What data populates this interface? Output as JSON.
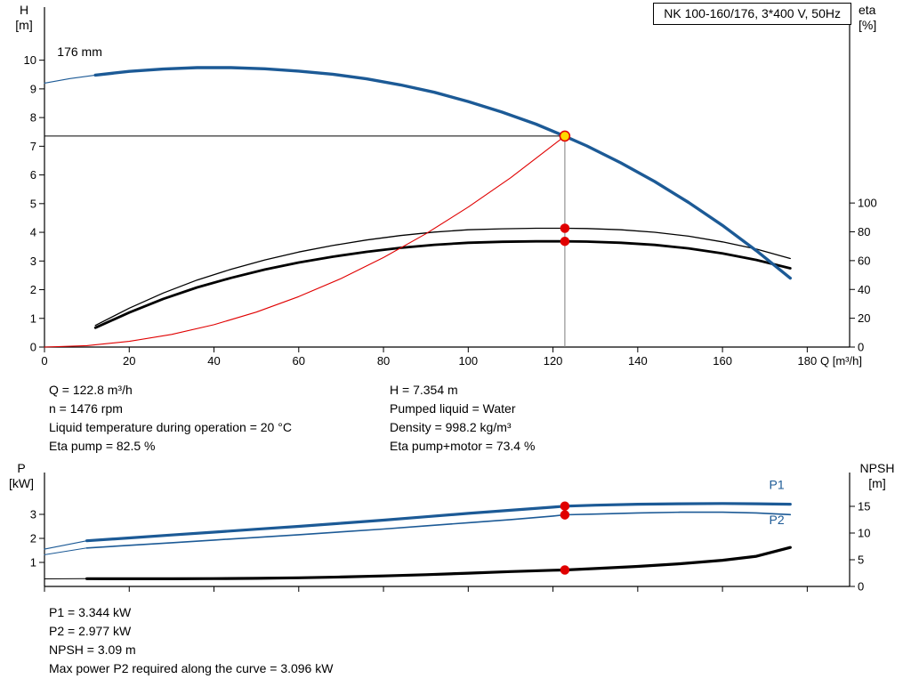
{
  "title_box": {
    "text": "NK 100-160/176, 3*400 V, 50Hz"
  },
  "axes_labels": {
    "h_symbol": "H",
    "h_unit": "[m]",
    "eta_symbol": "eta",
    "eta_unit": "[%]",
    "q_label": "Q [m³/h]",
    "p_symbol": "P",
    "p_unit": "[kW]",
    "npsh_symbol": "NPSH",
    "npsh_unit": "[m]"
  },
  "info_block": {
    "left": [
      "Q = 122.8 m³/h",
      "n = 1476 rpm",
      "Liquid temperature during operation = 20 °C",
      "Eta pump = 82.5 %"
    ],
    "right": [
      "H = 7.354 m",
      "Pumped liquid = Water",
      "Density = 998.2 kg/m³",
      "Eta pump+motor = 73.4 %"
    ]
  },
  "results_block": {
    "lines": [
      "P1 = 3.344 kW",
      "P2 = 2.977 kW",
      "NPSH = 3.09 m",
      "Max power P2 required along the curve = 3.096 kW"
    ]
  },
  "colors": {
    "curve_blue": "#1c5a96",
    "marker_red": "#e00000",
    "duty_yellow": "#ffd800",
    "ref_gray": "#7d7d7d",
    "black": "#000000"
  },
  "chart_data": [
    {
      "id": "qh-chart",
      "type": "line",
      "title": "NK 100-160/176, 3*400 V, 50Hz",
      "xlabel": "Q [m³/h]",
      "ylabel_left": "H [m]",
      "ylabel_right": "eta [%]",
      "grid": false,
      "show_x_tick_labels": true,
      "x_axis": {
        "min": 0,
        "max": 190,
        "ticks": [
          0,
          20,
          40,
          60,
          80,
          100,
          120,
          140,
          160,
          180
        ]
      },
      "y_axis_left": {
        "min": 0,
        "max": 11.85,
        "ticks": [
          0,
          1,
          2,
          3,
          4,
          5,
          6,
          7,
          8,
          9,
          10
        ]
      },
      "y_axis_right": {
        "min": 0,
        "max": 236,
        "ticks": [
          0,
          20,
          40,
          60,
          80,
          100
        ]
      },
      "ref_lines": [
        {
          "name": "duty-head-line",
          "orient": "h",
          "axis": "left",
          "y": 7.354,
          "x1": 0,
          "x2": 122.8,
          "color": "#000000",
          "width": 1
        },
        {
          "name": "duty-flow-line",
          "orient": "v",
          "axis": "left",
          "x": 122.8,
          "y1": 0,
          "y2": 7.354,
          "color": "#7d7d7d",
          "width": 1
        }
      ],
      "series": [
        {
          "name": "head-curve-extension",
          "axis": "left",
          "color": "#1c5a96",
          "width": 1.1,
          "x": [
            0,
            6,
            12
          ],
          "y": [
            9.2,
            9.36,
            9.48
          ]
        },
        {
          "name": "eta-pump-curve",
          "axis": "right",
          "color": "#000000",
          "width": 1.3,
          "x": [
            12,
            20,
            28,
            36,
            44,
            52,
            60,
            68,
            76,
            84,
            92,
            100,
            108,
            116,
            122.8,
            128,
            136,
            144,
            152,
            160,
            168,
            176
          ],
          "y": [
            15,
            27,
            37.5,
            46.5,
            54,
            60.5,
            66,
            70.5,
            74.3,
            77.4,
            79.8,
            81.4,
            82.1,
            82.5,
            82.5,
            82.3,
            81.4,
            79.7,
            77,
            73,
            68,
            61.5
          ]
        },
        {
          "name": "eta-pump-motor-curve",
          "axis": "right",
          "color": "#000000",
          "width": 2.8,
          "x": [
            12,
            20,
            28,
            36,
            44,
            52,
            60,
            68,
            76,
            84,
            92,
            100,
            108,
            116,
            122.8,
            128,
            136,
            144,
            152,
            160,
            168,
            176
          ],
          "y": [
            13.4,
            24,
            33.4,
            41.4,
            48,
            53.8,
            58.7,
            62.7,
            66.1,
            68.9,
            71,
            72.4,
            73.1,
            73.4,
            73.4,
            73.2,
            72.4,
            70.9,
            68.5,
            65,
            60.5,
            54.7
          ]
        },
        {
          "name": "system-curve",
          "axis": "left",
          "color": "#e00000",
          "width": 1.1,
          "x": [
            0,
            10,
            20,
            30,
            40,
            50,
            60,
            70,
            80,
            90,
            100,
            110,
            122.8
          ],
          "y": [
            0,
            0.05,
            0.2,
            0.44,
            0.78,
            1.22,
            1.76,
            2.39,
            3.12,
            3.95,
            4.88,
            5.9,
            7.354
          ]
        },
        {
          "name": "head-curve",
          "axis": "left",
          "color": "#1c5a96",
          "width": 3.4,
          "x": [
            12,
            20,
            28,
            36,
            44,
            52,
            60,
            68,
            76,
            84,
            92,
            100,
            108,
            116,
            122.8,
            128,
            136,
            144,
            152,
            160,
            168,
            176
          ],
          "y": [
            9.48,
            9.61,
            9.69,
            9.74,
            9.74,
            9.7,
            9.62,
            9.51,
            9.35,
            9.14,
            8.88,
            8.56,
            8.19,
            7.77,
            7.35,
            7.01,
            6.42,
            5.77,
            5.04,
            4.24,
            3.36,
            2.4
          ]
        }
      ],
      "markers": [
        {
          "name": "duty-point",
          "x": 122.8,
          "y": 7.354,
          "axis": "left",
          "r": 5.5,
          "fill": "#ffd800",
          "stroke": "#e00000",
          "interactable": true
        },
        {
          "name": "eta-pump-point",
          "x": 122.8,
          "y": 82.5,
          "axis": "right",
          "r": 4.5,
          "fill": "#e00000",
          "stroke": "#e00000",
          "interactable": false
        },
        {
          "name": "eta-pump-motor-point",
          "x": 122.8,
          "y": 73.4,
          "axis": "right",
          "r": 4.5,
          "fill": "#e00000",
          "stroke": "#e00000",
          "interactable": false
        }
      ],
      "annotations": [
        {
          "name": "impeller-diameter-label",
          "text": "176 mm",
          "x": 3,
          "y": 10.15,
          "axis": "left",
          "color": "#000000"
        }
      ]
    },
    {
      "id": "p-npsh-chart",
      "type": "line",
      "title": "",
      "xlabel": "Q [m³/h]",
      "ylabel_left": "P [kW]",
      "ylabel_right": "NPSH [m]",
      "grid": false,
      "show_x_tick_labels": false,
      "x_axis": {
        "min": 0,
        "max": 190,
        "ticks": [
          0,
          20,
          40,
          60,
          80,
          100,
          120,
          140,
          160,
          180
        ]
      },
      "y_axis_left": {
        "min": 0,
        "max": 4.74,
        "ticks": [
          1,
          2,
          3
        ]
      },
      "y_axis_right": {
        "min": 0,
        "max": 21.33,
        "ticks": [
          0,
          5,
          10,
          15
        ]
      },
      "ref_lines": [],
      "series": [
        {
          "name": "p1-curve-extension",
          "axis": "left",
          "color": "#1c5a96",
          "width": 1.1,
          "x": [
            0,
            10
          ],
          "y": [
            1.55,
            1.9
          ]
        },
        {
          "name": "p2-curve-extension",
          "axis": "left",
          "color": "#1c5a96",
          "width": 1,
          "x": [
            0,
            10
          ],
          "y": [
            1.32,
            1.6
          ]
        },
        {
          "name": "npsh-curve-extension",
          "axis": "right",
          "color": "#000000",
          "width": 1,
          "x": [
            0,
            10
          ],
          "y": [
            1.42,
            1.45
          ]
        },
        {
          "name": "npsh-curve",
          "axis": "right",
          "color": "#000000",
          "width": 3.2,
          "x": [
            10,
            20,
            30,
            40,
            50,
            60,
            70,
            80,
            90,
            100,
            110,
            120,
            122.8,
            130,
            140,
            150,
            160,
            168,
            176
          ],
          "y": [
            1.45,
            1.44,
            1.44,
            1.46,
            1.52,
            1.62,
            1.76,
            1.96,
            2.2,
            2.48,
            2.78,
            3.04,
            3.09,
            3.35,
            3.75,
            4.25,
            4.9,
            5.65,
            7.3
          ]
        },
        {
          "name": "p2-curve",
          "axis": "left",
          "color": "#1c5a96",
          "width": 1.6,
          "x": [
            10,
            20,
            30,
            40,
            50,
            60,
            70,
            80,
            90,
            100,
            110,
            120,
            122.8,
            130,
            140,
            150,
            160,
            168,
            176
          ],
          "y": [
            1.6,
            1.71,
            1.82,
            1.93,
            2.04,
            2.15,
            2.27,
            2.39,
            2.52,
            2.65,
            2.78,
            2.93,
            2.98,
            3.01,
            3.06,
            3.09,
            3.09,
            3.06,
            2.99
          ]
        },
        {
          "name": "p1-curve",
          "axis": "left",
          "color": "#1c5a96",
          "width": 3.2,
          "x": [
            10,
            20,
            30,
            40,
            50,
            60,
            70,
            80,
            90,
            100,
            110,
            120,
            122.8,
            130,
            140,
            150,
            160,
            168,
            176
          ],
          "y": [
            1.9,
            2.02,
            2.14,
            2.26,
            2.38,
            2.5,
            2.63,
            2.76,
            2.9,
            3.04,
            3.17,
            3.3,
            3.34,
            3.38,
            3.42,
            3.44,
            3.45,
            3.44,
            3.42
          ]
        }
      ],
      "markers": [
        {
          "name": "p1-point",
          "x": 122.8,
          "y": 3.344,
          "axis": "left",
          "r": 4.5,
          "fill": "#e00000",
          "stroke": "#e00000",
          "interactable": false
        },
        {
          "name": "p2-point",
          "x": 122.8,
          "y": 2.977,
          "axis": "left",
          "r": 4.5,
          "fill": "#e00000",
          "stroke": "#e00000",
          "interactable": false
        },
        {
          "name": "npsh-point",
          "x": 122.8,
          "y": 3.09,
          "axis": "right",
          "r": 4.5,
          "fill": "#e00000",
          "stroke": "#e00000",
          "interactable": false
        }
      ],
      "annotations": [
        {
          "name": "p1-curve-label",
          "text": "P1",
          "x": 171,
          "y": 4.05,
          "axis": "left",
          "color": "#1c5a96"
        },
        {
          "name": "p2-curve-label",
          "text": "P2",
          "x": 171,
          "y": 2.6,
          "axis": "left",
          "color": "#1c5a96"
        }
      ]
    }
  ]
}
